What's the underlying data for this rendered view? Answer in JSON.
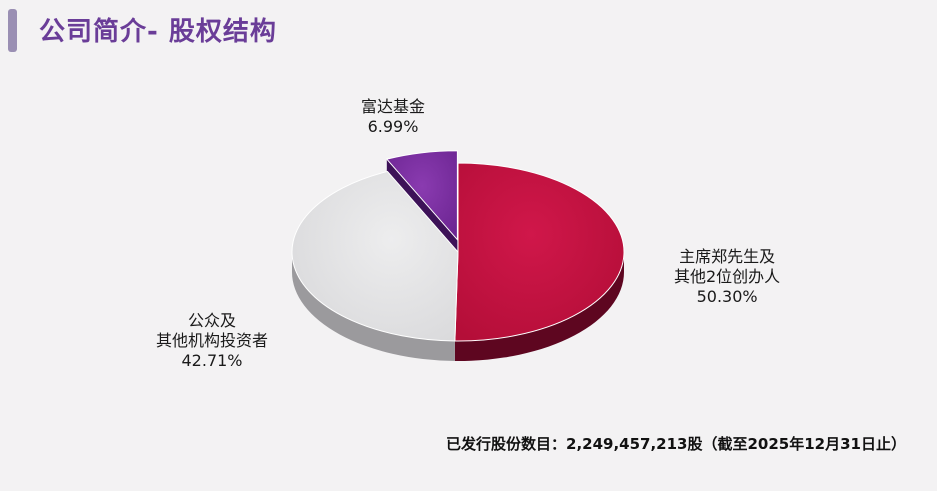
{
  "header": {
    "title": "公司简介- 股权结构"
  },
  "chart_data": {
    "type": "pie",
    "title": "",
    "slices": [
      {
        "label_lines": [
          "主席郑先生及",
          "其他2位创办人"
        ],
        "value": 50.3,
        "value_label": "50.30%",
        "color": "#c4123f",
        "side_color": "#5e0620"
      },
      {
        "label_lines": [
          "公众及",
          "其他机构投资者"
        ],
        "value": 42.71,
        "value_label": "42.71%",
        "color": "#e4e3e5",
        "side_color": "#9b9a9d"
      },
      {
        "label_lines": [
          "富达基金"
        ],
        "value": 6.99,
        "value_label": "6.99%",
        "color": "#7a2ea0",
        "side_color": "#3d1258",
        "exploded": true
      }
    ],
    "start": "12 o'clock",
    "direction": "clockwise",
    "legend": "none (direct labels)"
  },
  "footnote": {
    "text": "已发行股份数目：2,249,457,213股（截至2025年12月31日止）"
  }
}
